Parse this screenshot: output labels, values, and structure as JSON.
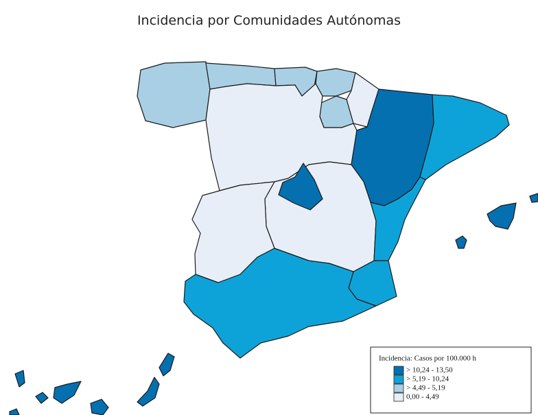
{
  "title": "Incidencia por Comunidades Autónomas",
  "legend": {
    "title": "Incidencia: Casos por 100.000 h",
    "items": [
      {
        "label": "> 10,24 - 13,50",
        "color": "#0570b0"
      },
      {
        "label": "> 5,19 - 10,24",
        "color": "#0ea3d8"
      },
      {
        "label": "> 4,49 - 5,19",
        "color": "#a9cfe5"
      },
      {
        "label": "0,00 - 4,49",
        "color": "#e8eef7"
      }
    ]
  }
}
